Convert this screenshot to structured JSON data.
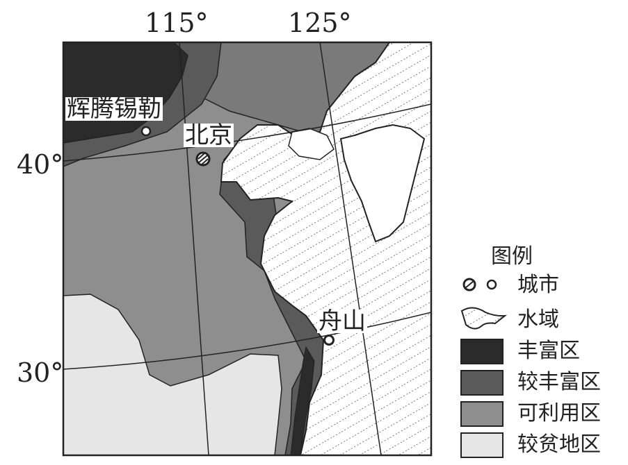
{
  "axes": {
    "lon_labels": [
      "115°",
      "125°"
    ],
    "lat_labels": [
      "40°",
      "30°"
    ]
  },
  "cities": [
    {
      "name": "辉腾锡勒"
    },
    {
      "name": "北京"
    },
    {
      "name": "舟山"
    }
  ],
  "legend": {
    "title": "图例",
    "items": [
      {
        "label": "城市",
        "symbol": "city-markers"
      },
      {
        "label": "水域",
        "symbol": "water-hatch"
      },
      {
        "label": "丰富区",
        "color": "#2b2b2b"
      },
      {
        "label": "较丰富区",
        "color": "#5a5a5a"
      },
      {
        "label": "可利用区",
        "color": "#8e8e8e"
      },
      {
        "label": "较贫地区",
        "color": "#e6e6e6"
      }
    ]
  }
}
